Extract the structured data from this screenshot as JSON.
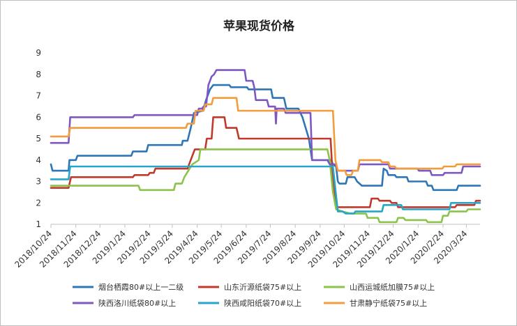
{
  "chart_data": {
    "type": "line",
    "title": "苹果现货价格",
    "xlabel": "",
    "ylabel": "",
    "ylim": [
      1,
      9
    ],
    "yticks": [
      "1",
      "2",
      "3",
      "4",
      "5",
      "6",
      "7",
      "8",
      "9"
    ],
    "x_start": "2018/10/24",
    "x_end": "2020/4/10",
    "x_ticks": [
      "2018/10/24",
      "2018/11/24",
      "2018/12/24",
      "2019/1/24",
      "2019/2/24",
      "2019/3/24",
      "2019/4/24",
      "2019/5/24",
      "2019/6/24",
      "2019/7/24",
      "2019/8/24",
      "2019/9/24",
      "2019/10/24",
      "2019/11/24",
      "2019/12/24",
      "2020/1/24",
      "2020/2/24",
      "2020/3/24"
    ],
    "legend_position": "bottom",
    "grid": false,
    "series": [
      {
        "name": "烟台栖霞80#以上一二级",
        "color": "#2e75b6",
        "points": [
          [
            "2018/10/24",
            3.8
          ],
          [
            "2018/10/26",
            3.5
          ],
          [
            "2018/11/15",
            3.5
          ],
          [
            "2018/11/16",
            4.0
          ],
          [
            "2018/11/24",
            4.0
          ],
          [
            "2018/11/26",
            4.2
          ],
          [
            "2019/2/1",
            4.2
          ],
          [
            "2019/2/3",
            4.4
          ],
          [
            "2019/2/20",
            4.4
          ],
          [
            "2019/2/22",
            4.7
          ],
          [
            "2019/4/5",
            4.7
          ],
          [
            "2019/4/6",
            4.9
          ],
          [
            "2019/4/12",
            4.9
          ],
          [
            "2019/4/16",
            5.5
          ],
          [
            "2019/4/20",
            6.2
          ],
          [
            "2019/5/1",
            6.3
          ],
          [
            "2019/5/5",
            6.8
          ],
          [
            "2019/5/10",
            7.3
          ],
          [
            "2019/5/14",
            7.5
          ],
          [
            "2019/6/3",
            7.5
          ],
          [
            "2019/6/5",
            7.4
          ],
          [
            "2019/6/25",
            7.4
          ],
          [
            "2019/6/27",
            7.3
          ],
          [
            "2019/7/25",
            7.3
          ],
          [
            "2019/7/27",
            6.9
          ],
          [
            "2019/8/10",
            6.9
          ],
          [
            "2019/8/13",
            6.4
          ],
          [
            "2019/8/28",
            6.4
          ],
          [
            "2019/9/2",
            6.0
          ],
          [
            "2019/9/10",
            5.0
          ],
          [
            "2019/9/14",
            4.0
          ],
          [
            "2019/10/8",
            4.0
          ],
          [
            "2019/10/10",
            3.8
          ],
          [
            "2019/10/14",
            3.7
          ],
          [
            "2019/10/16",
            3.0
          ],
          [
            "2019/10/18",
            2.9
          ],
          [
            "2019/10/26",
            2.9
          ],
          [
            "2019/10/28",
            3.2
          ],
          [
            "2019/11/6",
            3.2
          ],
          [
            "2019/11/9",
            3.0
          ],
          [
            "2019/11/15",
            2.8
          ],
          [
            "2019/12/10",
            2.8
          ],
          [
            "2019/12/12",
            3.6
          ],
          [
            "2019/12/16",
            3.5
          ],
          [
            "2019/12/18",
            3.3
          ],
          [
            "2019/12/26",
            3.3
          ],
          [
            "2019/12/28",
            3.2
          ],
          [
            "2020/1/10",
            3.2
          ],
          [
            "2020/1/12",
            3.0
          ],
          [
            "2020/2/3",
            3.0
          ],
          [
            "2020/2/5",
            2.8
          ],
          [
            "2020/2/10",
            2.8
          ],
          [
            "2020/2/12",
            2.6
          ],
          [
            "2020/3/12",
            2.6
          ],
          [
            "2020/3/14",
            2.8
          ],
          [
            "2020/4/10",
            2.8
          ]
        ]
      },
      {
        "name": "山东沂源纸袋75#以上",
        "color": "#c0392b",
        "points": [
          [
            "2018/10/24",
            2.7
          ],
          [
            "2018/11/15",
            2.7
          ],
          [
            "2018/11/18",
            3.2
          ],
          [
            "2019/2/3",
            3.2
          ],
          [
            "2019/2/5",
            3.3
          ],
          [
            "2019/2/22",
            3.3
          ],
          [
            "2019/2/24",
            3.4
          ],
          [
            "2019/3/1",
            3.4
          ],
          [
            "2019/3/3",
            3.6
          ],
          [
            "2019/4/12",
            3.6
          ],
          [
            "2019/4/15",
            3.9
          ],
          [
            "2019/4/21",
            4.5
          ],
          [
            "2019/5/4",
            4.5
          ],
          [
            "2019/5/6",
            5.0
          ],
          [
            "2019/5/12",
            5.0
          ],
          [
            "2019/5/14",
            6.0
          ],
          [
            "2019/5/28",
            6.0
          ],
          [
            "2019/5/30",
            5.5
          ],
          [
            "2019/6/12",
            5.5
          ],
          [
            "2019/6/15",
            5.0
          ],
          [
            "2019/10/7",
            5.0
          ],
          [
            "2019/10/10",
            3.0
          ],
          [
            "2019/10/15",
            1.8
          ],
          [
            "2019/11/25",
            1.8
          ],
          [
            "2019/11/27",
            2.2
          ],
          [
            "2019/12/5",
            2.2
          ],
          [
            "2019/12/7",
            2.1
          ],
          [
            "2019/12/20",
            2.1
          ],
          [
            "2019/12/22",
            2.0
          ],
          [
            "2019/12/28",
            2.0
          ],
          [
            "2019/12/30",
            1.8
          ],
          [
            "2020/3/10",
            1.8
          ],
          [
            "2020/3/12",
            1.9
          ],
          [
            "2020/4/3",
            1.9
          ],
          [
            "2020/4/5",
            2.1
          ],
          [
            "2020/4/10",
            2.1
          ]
        ]
      },
      {
        "name": "山西运城纸加膜75#以上",
        "color": "#8bc34a",
        "points": [
          [
            "2018/10/24",
            2.8
          ],
          [
            "2019/2/10",
            2.8
          ],
          [
            "2019/2/12",
            2.6
          ],
          [
            "2019/3/26",
            2.6
          ],
          [
            "2019/3/28",
            2.9
          ],
          [
            "2019/4/5",
            2.9
          ],
          [
            "2019/4/8",
            3.2
          ],
          [
            "2019/4/13",
            3.5
          ],
          [
            "2019/4/18",
            3.8
          ],
          [
            "2019/4/26",
            4.0
          ],
          [
            "2019/4/28",
            4.5
          ],
          [
            "2019/10/3",
            4.5
          ],
          [
            "2019/10/6",
            4.0
          ],
          [
            "2019/10/10",
            2.5
          ],
          [
            "2019/10/14",
            1.7
          ],
          [
            "2019/10/22",
            1.6
          ],
          [
            "2019/11/1",
            1.5
          ],
          [
            "2019/11/20",
            1.5
          ],
          [
            "2019/11/22",
            1.3
          ],
          [
            "2019/12/5",
            1.3
          ],
          [
            "2019/12/7",
            1.1
          ],
          [
            "2019/12/28",
            1.1
          ],
          [
            "2019/12/30",
            1.3
          ],
          [
            "2020/1/6",
            1.3
          ],
          [
            "2020/1/8",
            1.2
          ],
          [
            "2020/2/3",
            1.2
          ],
          [
            "2020/2/5",
            1.1
          ],
          [
            "2020/2/22",
            1.1
          ],
          [
            "2020/2/24",
            1.4
          ],
          [
            "2020/3/1",
            1.4
          ],
          [
            "2020/3/3",
            1.6
          ],
          [
            "2020/3/24",
            1.6
          ],
          [
            "2020/3/26",
            1.7
          ],
          [
            "2020/4/10",
            1.7
          ]
        ]
      },
      {
        "name": "陕西洛川纸袋80#以上",
        "color": "#7e57c2",
        "points": [
          [
            "2018/10/24",
            4.8
          ],
          [
            "2018/11/15",
            4.8
          ],
          [
            "2018/11/17",
            6.0
          ],
          [
            "2019/2/3",
            6.0
          ],
          [
            "2019/2/5",
            6.1
          ],
          [
            "2019/4/24",
            6.1
          ],
          [
            "2019/4/26",
            6.4
          ],
          [
            "2019/4/30",
            6.4
          ],
          [
            "2019/5/2",
            6.5
          ],
          [
            "2019/5/5",
            6.5
          ],
          [
            "2019/5/8",
            7.5
          ],
          [
            "2019/5/12",
            7.9
          ],
          [
            "2019/5/15",
            8.0
          ],
          [
            "2019/5/18",
            8.2
          ],
          [
            "2019/6/22",
            8.2
          ],
          [
            "2019/6/24",
            7.7
          ],
          [
            "2019/7/2",
            7.7
          ],
          [
            "2019/7/4",
            7.4
          ],
          [
            "2019/7/6",
            6.8
          ],
          [
            "2019/7/20",
            6.8
          ],
          [
            "2019/7/22",
            6.5
          ],
          [
            "2019/7/30",
            6.5
          ],
          [
            "2019/7/31",
            5.7
          ],
          [
            "2019/8/1",
            6.4
          ],
          [
            "2019/8/10",
            6.4
          ],
          [
            "2019/8/12",
            6.2
          ],
          [
            "2019/9/12",
            6.2
          ],
          [
            "2019/9/14",
            4.0
          ],
          [
            "2019/10/3",
            4.0
          ],
          [
            "2019/10/6",
            3.8
          ],
          [
            "2019/10/13",
            3.8
          ],
          [
            "2019/10/16",
            3.5
          ],
          [
            "2019/11/10",
            3.5
          ],
          [
            "2019/11/12",
            3.8
          ],
          [
            "2019/12/18",
            3.8
          ],
          [
            "2019/12/20",
            3.6
          ],
          [
            "2020/1/23",
            3.6
          ],
          [
            "2020/1/25",
            3.5
          ],
          [
            "2020/2/8",
            3.5
          ],
          [
            "2020/2/10",
            3.3
          ],
          [
            "2020/2/24",
            3.3
          ],
          [
            "2020/2/26",
            3.4
          ],
          [
            "2020/3/18",
            3.4
          ],
          [
            "2020/3/20",
            3.7
          ],
          [
            "2020/4/10",
            3.7
          ]
        ]
      },
      {
        "name": "陕西咸阳纸袋70#以上",
        "color": "#26a6c9",
        "points": [
          [
            "2018/10/24",
            3.1
          ],
          [
            "2018/11/15",
            3.1
          ],
          [
            "2018/11/17",
            3.7
          ],
          [
            "2019/10/10",
            3.7
          ],
          [
            "2019/10/12",
            3.0
          ],
          [
            "2019/10/16",
            1.6
          ],
          [
            "2019/10/22",
            1.6
          ],
          [
            "2019/10/26",
            1.5
          ],
          [
            "2019/11/5",
            1.5
          ],
          [
            "2019/11/7",
            1.6
          ],
          [
            "2019/12/10",
            1.6
          ],
          [
            "2019/12/12",
            1.9
          ],
          [
            "2020/1/3",
            1.9
          ],
          [
            "2020/1/5",
            1.7
          ],
          [
            "2020/3/3",
            1.7
          ],
          [
            "2020/3/5",
            2.0
          ],
          [
            "2020/4/10",
            2.0
          ]
        ]
      },
      {
        "name": "甘肃静宁纸袋75#以上",
        "color": "#f39c3c",
        "points": [
          [
            "2018/10/24",
            5.1
          ],
          [
            "2018/11/15",
            5.1
          ],
          [
            "2018/11/17",
            5.5
          ],
          [
            "2019/4/10",
            5.5
          ],
          [
            "2019/4/12",
            5.7
          ],
          [
            "2019/4/20",
            5.7
          ],
          [
            "2019/4/22",
            6.3
          ],
          [
            "2019/5/2",
            6.3
          ],
          [
            "2019/5/4",
            6.6
          ],
          [
            "2019/5/12",
            6.6
          ],
          [
            "2019/5/14",
            6.9
          ],
          [
            "2019/6/12",
            6.9
          ],
          [
            "2019/6/14",
            6.3
          ],
          [
            "2019/10/10",
            6.3
          ],
          [
            "2019/10/13",
            4.0
          ],
          [
            "2019/10/16",
            3.5
          ],
          [
            "2019/10/25",
            3.5
          ],
          [
            "2019/10/27",
            3.3
          ],
          [
            "2019/11/2",
            3.3
          ],
          [
            "2019/11/4",
            3.5
          ],
          [
            "2019/11/10",
            3.5
          ],
          [
            "2019/11/12",
            4.0
          ],
          [
            "2019/12/8",
            4.0
          ],
          [
            "2019/12/10",
            3.9
          ],
          [
            "2019/12/18",
            3.9
          ],
          [
            "2019/12/20",
            3.7
          ],
          [
            "2019/12/26",
            3.7
          ],
          [
            "2019/12/28",
            3.6
          ],
          [
            "2020/2/23",
            3.6
          ],
          [
            "2020/2/25",
            3.7
          ],
          [
            "2020/3/10",
            3.7
          ],
          [
            "2020/3/12",
            3.8
          ],
          [
            "2020/4/10",
            3.8
          ]
        ]
      }
    ]
  }
}
